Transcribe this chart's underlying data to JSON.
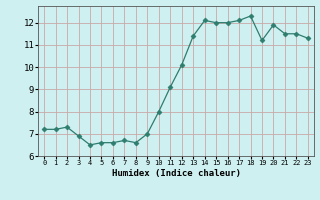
{
  "x": [
    0,
    1,
    2,
    3,
    4,
    5,
    6,
    7,
    8,
    9,
    10,
    11,
    12,
    13,
    14,
    15,
    16,
    17,
    18,
    19,
    20,
    21,
    22,
    23
  ],
  "y": [
    7.2,
    7.2,
    7.3,
    6.9,
    6.5,
    6.6,
    6.6,
    6.7,
    6.6,
    7.0,
    8.0,
    9.1,
    10.1,
    11.4,
    12.1,
    12.0,
    12.0,
    12.1,
    12.3,
    11.2,
    11.9,
    11.5,
    11.5,
    11.3
  ],
  "xlabel": "Humidex (Indice chaleur)",
  "xlim": [
    -0.5,
    23.5
  ],
  "ylim": [
    6.0,
    12.75
  ],
  "yticks": [
    6,
    7,
    8,
    9,
    10,
    11,
    12
  ],
  "xticks": [
    0,
    1,
    2,
    3,
    4,
    5,
    6,
    7,
    8,
    9,
    10,
    11,
    12,
    13,
    14,
    15,
    16,
    17,
    18,
    19,
    20,
    21,
    22,
    23
  ],
  "line_color": "#2e7d6e",
  "marker": "D",
  "marker_size": 2.5,
  "bg_color": "#cff0f0",
  "grid_major_color": "#c9a8a8",
  "label_fontsize": 6.5,
  "tick_fontsize_x": 5.0,
  "tick_fontsize_y": 6.5
}
